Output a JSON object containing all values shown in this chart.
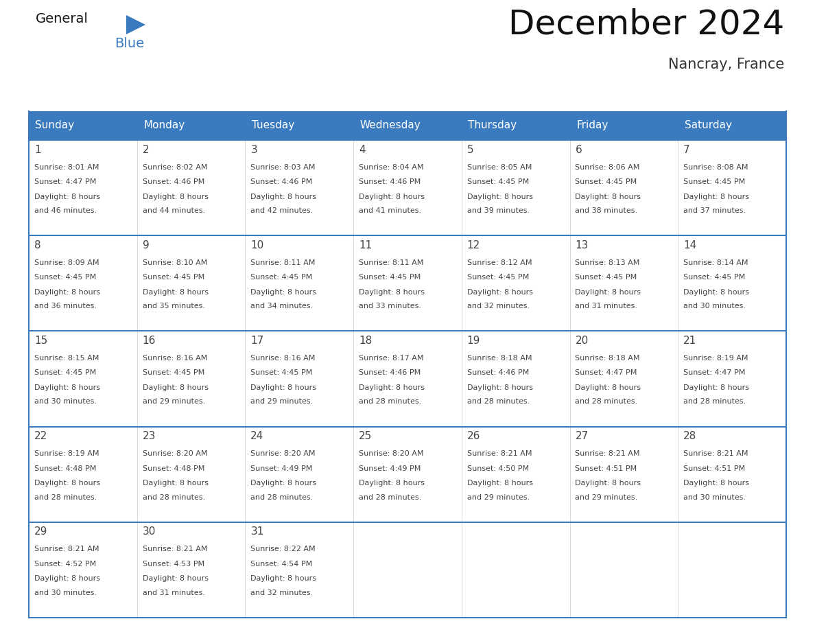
{
  "title": "December 2024",
  "subtitle": "Nancray, France",
  "header_color": "#3a7bbf",
  "header_text_color": "#ffffff",
  "border_color": "#3a7bbf",
  "text_color": "#444444",
  "light_border_color": "#cccccc",
  "bg_color": "#ffffff",
  "days_of_week": [
    "Sunday",
    "Monday",
    "Tuesday",
    "Wednesday",
    "Thursday",
    "Friday",
    "Saturday"
  ],
  "weeks": [
    [
      {
        "day": 1,
        "sunrise": "8:01 AM",
        "sunset": "4:47 PM",
        "daylight_h": "8 hours",
        "daylight_m": "46 minutes."
      },
      {
        "day": 2,
        "sunrise": "8:02 AM",
        "sunset": "4:46 PM",
        "daylight_h": "8 hours",
        "daylight_m": "44 minutes."
      },
      {
        "day": 3,
        "sunrise": "8:03 AM",
        "sunset": "4:46 PM",
        "daylight_h": "8 hours",
        "daylight_m": "42 minutes."
      },
      {
        "day": 4,
        "sunrise": "8:04 AM",
        "sunset": "4:46 PM",
        "daylight_h": "8 hours",
        "daylight_m": "41 minutes."
      },
      {
        "day": 5,
        "sunrise": "8:05 AM",
        "sunset": "4:45 PM",
        "daylight_h": "8 hours",
        "daylight_m": "39 minutes."
      },
      {
        "day": 6,
        "sunrise": "8:06 AM",
        "sunset": "4:45 PM",
        "daylight_h": "8 hours",
        "daylight_m": "38 minutes."
      },
      {
        "day": 7,
        "sunrise": "8:08 AM",
        "sunset": "4:45 PM",
        "daylight_h": "8 hours",
        "daylight_m": "37 minutes."
      }
    ],
    [
      {
        "day": 8,
        "sunrise": "8:09 AM",
        "sunset": "4:45 PM",
        "daylight_h": "8 hours",
        "daylight_m": "36 minutes."
      },
      {
        "day": 9,
        "sunrise": "8:10 AM",
        "sunset": "4:45 PM",
        "daylight_h": "8 hours",
        "daylight_m": "35 minutes."
      },
      {
        "day": 10,
        "sunrise": "8:11 AM",
        "sunset": "4:45 PM",
        "daylight_h": "8 hours",
        "daylight_m": "34 minutes."
      },
      {
        "day": 11,
        "sunrise": "8:11 AM",
        "sunset": "4:45 PM",
        "daylight_h": "8 hours",
        "daylight_m": "33 minutes."
      },
      {
        "day": 12,
        "sunrise": "8:12 AM",
        "sunset": "4:45 PM",
        "daylight_h": "8 hours",
        "daylight_m": "32 minutes."
      },
      {
        "day": 13,
        "sunrise": "8:13 AM",
        "sunset": "4:45 PM",
        "daylight_h": "8 hours",
        "daylight_m": "31 minutes."
      },
      {
        "day": 14,
        "sunrise": "8:14 AM",
        "sunset": "4:45 PM",
        "daylight_h": "8 hours",
        "daylight_m": "30 minutes."
      }
    ],
    [
      {
        "day": 15,
        "sunrise": "8:15 AM",
        "sunset": "4:45 PM",
        "daylight_h": "8 hours",
        "daylight_m": "30 minutes."
      },
      {
        "day": 16,
        "sunrise": "8:16 AM",
        "sunset": "4:45 PM",
        "daylight_h": "8 hours",
        "daylight_m": "29 minutes."
      },
      {
        "day": 17,
        "sunrise": "8:16 AM",
        "sunset": "4:45 PM",
        "daylight_h": "8 hours",
        "daylight_m": "29 minutes."
      },
      {
        "day": 18,
        "sunrise": "8:17 AM",
        "sunset": "4:46 PM",
        "daylight_h": "8 hours",
        "daylight_m": "28 minutes."
      },
      {
        "day": 19,
        "sunrise": "8:18 AM",
        "sunset": "4:46 PM",
        "daylight_h": "8 hours",
        "daylight_m": "28 minutes."
      },
      {
        "day": 20,
        "sunrise": "8:18 AM",
        "sunset": "4:47 PM",
        "daylight_h": "8 hours",
        "daylight_m": "28 minutes."
      },
      {
        "day": 21,
        "sunrise": "8:19 AM",
        "sunset": "4:47 PM",
        "daylight_h": "8 hours",
        "daylight_m": "28 minutes."
      }
    ],
    [
      {
        "day": 22,
        "sunrise": "8:19 AM",
        "sunset": "4:48 PM",
        "daylight_h": "8 hours",
        "daylight_m": "28 minutes."
      },
      {
        "day": 23,
        "sunrise": "8:20 AM",
        "sunset": "4:48 PM",
        "daylight_h": "8 hours",
        "daylight_m": "28 minutes."
      },
      {
        "day": 24,
        "sunrise": "8:20 AM",
        "sunset": "4:49 PM",
        "daylight_h": "8 hours",
        "daylight_m": "28 minutes."
      },
      {
        "day": 25,
        "sunrise": "8:20 AM",
        "sunset": "4:49 PM",
        "daylight_h": "8 hours",
        "daylight_m": "28 minutes."
      },
      {
        "day": 26,
        "sunrise": "8:21 AM",
        "sunset": "4:50 PM",
        "daylight_h": "8 hours",
        "daylight_m": "29 minutes."
      },
      {
        "day": 27,
        "sunrise": "8:21 AM",
        "sunset": "4:51 PM",
        "daylight_h": "8 hours",
        "daylight_m": "29 minutes."
      },
      {
        "day": 28,
        "sunrise": "8:21 AM",
        "sunset": "4:51 PM",
        "daylight_h": "8 hours",
        "daylight_m": "30 minutes."
      }
    ],
    [
      {
        "day": 29,
        "sunrise": "8:21 AM",
        "sunset": "4:52 PM",
        "daylight_h": "8 hours",
        "daylight_m": "30 minutes."
      },
      {
        "day": 30,
        "sunrise": "8:21 AM",
        "sunset": "4:53 PM",
        "daylight_h": "8 hours",
        "daylight_m": "31 minutes."
      },
      {
        "day": 31,
        "sunrise": "8:22 AM",
        "sunset": "4:54 PM",
        "daylight_h": "8 hours",
        "daylight_m": "32 minutes."
      },
      null,
      null,
      null,
      null
    ]
  ],
  "logo_triangle_color": "#3a7bbf",
  "title_fontsize": 36,
  "subtitle_fontsize": 15,
  "header_fontsize": 11,
  "day_num_fontsize": 11,
  "cell_text_fontsize": 8
}
